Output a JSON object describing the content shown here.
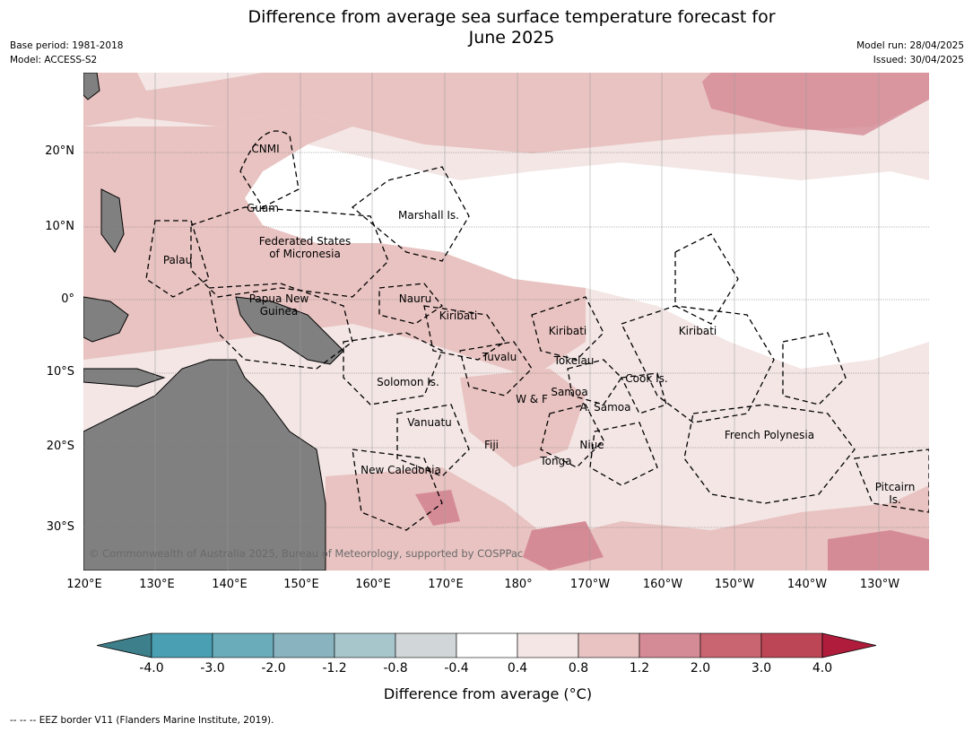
{
  "title_line1": "Difference from average sea surface temperature forecast for",
  "title_line2": "June 2025",
  "meta_left": {
    "base_period": "Base period: 1981-2018",
    "model": "Model: ACCESS-S2"
  },
  "meta_right": {
    "model_run": "Model run: 28/04/2025",
    "issued": "Issued: 30/04/2025"
  },
  "lat_labels": [
    "20°N",
    "10°N",
    "0°",
    "10°S",
    "20°S",
    "30°S"
  ],
  "lon_labels": [
    "120°E",
    "130°E",
    "140°E",
    "150°E",
    "160°E",
    "170°E",
    "180°",
    "170°W",
    "160°W",
    "150°W",
    "140°W",
    "130°W"
  ],
  "regions": {
    "cnmi": "CNMI",
    "guam": "Guam",
    "marshall": "Marshall Is.",
    "fsm1": "Federated States",
    "fsm2": "of Micronesia",
    "palau": "Palau",
    "png1": "Papua New",
    "png2": "Guinea",
    "nauru": "Nauru",
    "kiribati_w": "Kiribati",
    "kiribati_c": "Kiribati",
    "kiribati_e": "Kiribati",
    "tuvalu": "Tuvalu",
    "tokelau": "Tokelau",
    "cook": "Cook Is.",
    "solomon": "Solomon Is.",
    "samoa": "Samoa",
    "wf": "W & F",
    "asamoa": "A. Samoa",
    "vanuatu": "Vanuatu",
    "fiji": "Fiji",
    "niue": "Niue",
    "tonga": "Tonga",
    "fp": "French Polynesia",
    "newcal": "New Caledonia",
    "pitcairn1": "Pitcairn",
    "pitcairn2": "Is."
  },
  "copyright": "© Commonwealth of Australia 2025, Bureau of Meteorology, supported by COSPPac",
  "colorbar": {
    "ticks": [
      "-4.0",
      "-3.0",
      "-2.0",
      "-1.2",
      "-0.8",
      "-0.4",
      "0.4",
      "0.8",
      "1.2",
      "2.0",
      "3.0",
      "4.0"
    ],
    "colors": [
      "#3d7f8a",
      "#4a9fb2",
      "#6bacbb",
      "#88b3bf",
      "#a6c6cb",
      "#d1d6d8",
      "#ffffff",
      "#f3e6e5",
      "#e8c3c1",
      "#d58b96",
      "#c96471",
      "#bd4656",
      "#b01d3c"
    ],
    "label": "Difference from average (°C)"
  },
  "footnote": "--  --  -- EEZ border V11 (Flanders Marine Institute, 2019)."
}
